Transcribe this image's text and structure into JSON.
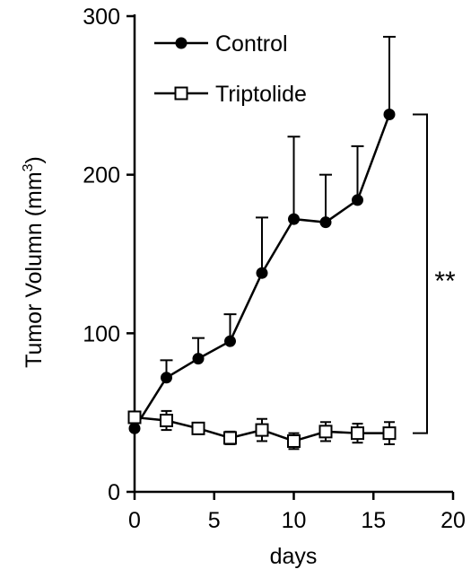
{
  "chart_data": {
    "type": "line",
    "xlabel": "days",
    "ylabel": "Tumor Volumn (mm",
    "ylabel_sup": "3",
    "ylabel_close": ")",
    "xlim": [
      0,
      20
    ],
    "ylim": [
      0,
      300
    ],
    "xticks": [
      0,
      5,
      10,
      15,
      20
    ],
    "yticks": [
      0,
      100,
      200,
      300
    ],
    "grid": false,
    "legend_position": "top-left",
    "series": [
      {
        "name": "Control",
        "marker": "filled-circle",
        "x": [
          0,
          2,
          4,
          6,
          8,
          10,
          12,
          14,
          16
        ],
        "y": [
          40,
          72,
          84,
          95,
          138,
          172,
          170,
          184,
          238
        ],
        "error_upper": [
          0,
          11,
          13,
          17,
          35,
          52,
          30,
          34,
          49
        ]
      },
      {
        "name": "Triptolide",
        "marker": "open-square",
        "x": [
          0,
          2,
          4,
          6,
          8,
          10,
          12,
          14,
          16
        ],
        "y": [
          47,
          45,
          40,
          34,
          39,
          32,
          38,
          37,
          37
        ],
        "error": [
          0,
          6,
          3,
          4,
          7,
          5,
          6,
          6,
          7
        ]
      }
    ],
    "annotation": "**",
    "colors": {
      "line": "#000000",
      "background": "#ffffff"
    }
  }
}
